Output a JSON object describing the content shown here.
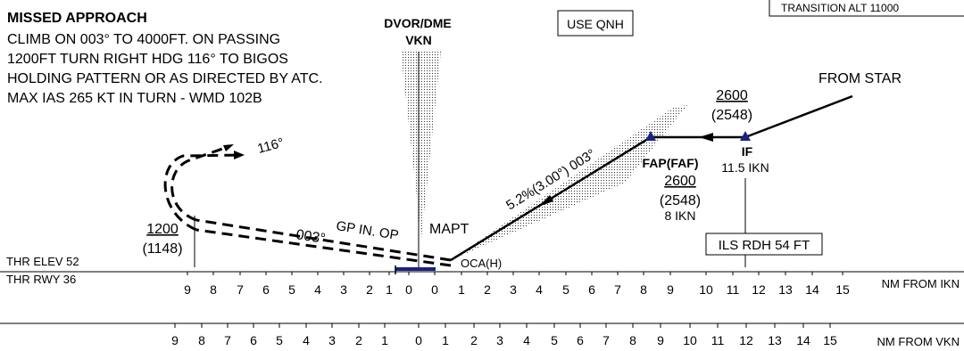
{
  "missed_approach": {
    "heading": "MISSED APPROACH",
    "lines": [
      "CLIMB ON 003° TO 4000FT. ON PASSING",
      "1200FT  TURN RIGHT HDG 116° TO BIGOS",
      "HOLDING PATTERN OR AS DIRECTED BY ATC.",
      "MAX IAS 265 KT IN TURN - WMD 102B"
    ]
  },
  "navaid": {
    "type": "DVOR/DME",
    "ident": "VKN"
  },
  "qnh_box": "USE QNH",
  "transition_alt": "TRANSITION ALT 11000",
  "from_star": "FROM STAR",
  "alt_if": {
    "alt": "2600",
    "paren": "(2548)"
  },
  "if_label": "IF",
  "if_dist": "11.5 IKN",
  "faf_label": "FAP(FAF)",
  "alt_faf": {
    "alt": "2600",
    "paren": "(2548)",
    "dist": "8 IKN"
  },
  "glide_label": "5.2%(3.00°) 003°",
  "ils_rdh": "ILS RDH 54 FT",
  "mapt": "MAPT",
  "oca": "OCA(H)",
  "gp_inop": "GP IN. OP",
  "missed_track": "003°",
  "turn_hdg": "116°",
  "ma_alt": {
    "alt": "1200",
    "paren": "(1148)"
  },
  "thr_elev": "THR ELEV 52",
  "thr_rwy": "THR RWY 36",
  "scale_ikn": {
    "ticks": [
      "9",
      "8",
      "7",
      "6",
      "5",
      "4",
      "3",
      "2",
      "1",
      "0",
      "0",
      "1",
      "2",
      "3",
      "4",
      "5",
      "6",
      "7",
      "8",
      "9",
      "10",
      "11",
      "12",
      "13",
      "14",
      "15"
    ],
    "label": "NM FROM IKN"
  },
  "scale_vkn": {
    "ticks": [
      "9",
      "8",
      "7",
      "6",
      "5",
      "4",
      "3",
      "2",
      "1",
      "0",
      "1",
      "2",
      "3",
      "4",
      "5",
      "6",
      "7",
      "8",
      "9",
      "10",
      "11",
      "12",
      "13",
      "14",
      "15"
    ],
    "label": "NM FROM VKN"
  },
  "colors": {
    "ink": "#000000",
    "navaid_marker": "#1a237e",
    "runway": "#1a237e"
  }
}
